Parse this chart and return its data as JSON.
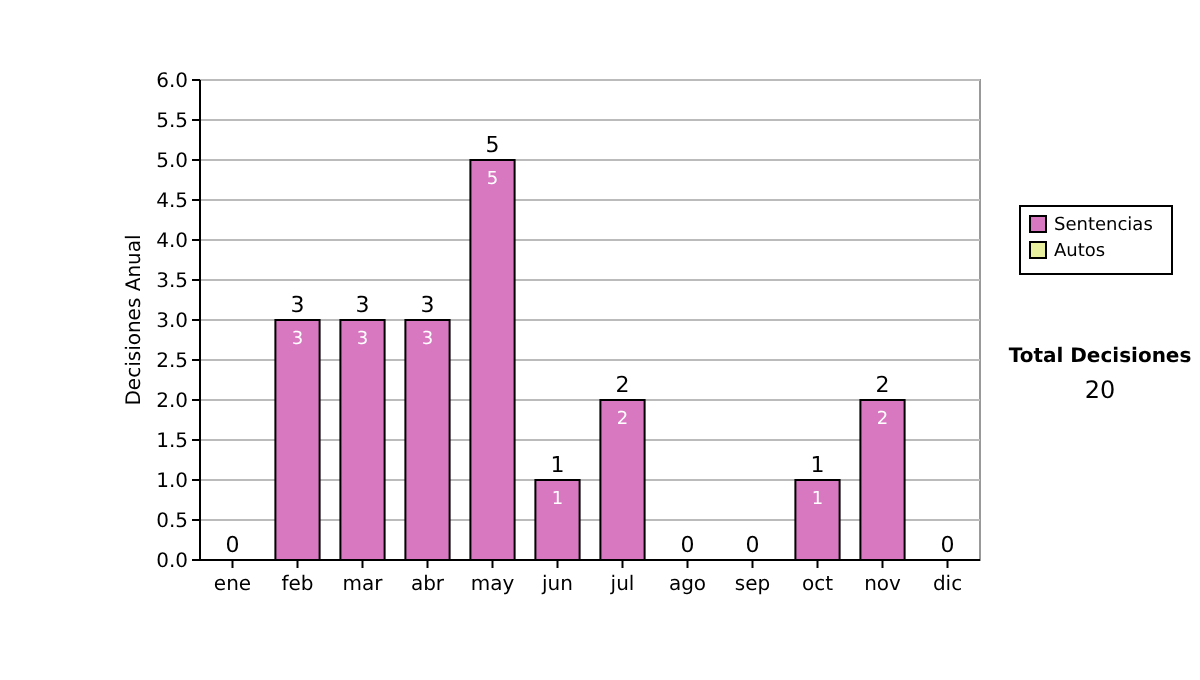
{
  "chart_data": {
    "type": "bar",
    "ylabel": "Decisiones Anual",
    "categories": [
      "ene",
      "feb",
      "mar",
      "abr",
      "may",
      "jun",
      "jul",
      "ago",
      "sep",
      "oct",
      "nov",
      "dic"
    ],
    "stacked": true,
    "series": [
      {
        "name": "Sentencias",
        "color": "#d878c0",
        "values": [
          0,
          3,
          3,
          3,
          5,
          1,
          2,
          0,
          0,
          1,
          2,
          0
        ],
        "value_labels": [
          null,
          "3",
          "3",
          "3",
          "5",
          "1",
          "2",
          null,
          null,
          "1",
          "2",
          null
        ]
      },
      {
        "name": "Autos",
        "color": "#e8f0a0",
        "values": [
          0,
          0,
          0,
          0,
          0,
          0,
          0,
          0,
          0,
          0,
          0,
          0
        ]
      }
    ],
    "totals": [
      "0",
      "3",
      "3",
      "3",
      "5",
      "1",
      "2",
      "0",
      "0",
      "1",
      "2",
      "0"
    ],
    "ylim": [
      0,
      6
    ],
    "yticks": [
      {
        "value": 0,
        "label": "0.0"
      },
      {
        "value": 0.5,
        "label": "0.5"
      },
      {
        "value": 1,
        "label": "1.0"
      },
      {
        "value": 1.5,
        "label": "1.5"
      },
      {
        "value": 2,
        "label": "2.0"
      },
      {
        "value": 2.5,
        "label": "2.5"
      },
      {
        "value": 3,
        "label": "3.0"
      },
      {
        "value": 3.5,
        "label": "3.5"
      },
      {
        "value": 4,
        "label": "4.0"
      },
      {
        "value": 4.5,
        "label": "4.5"
      },
      {
        "value": 5,
        "label": "5.0"
      },
      {
        "value": 5.5,
        "label": "5.5"
      },
      {
        "value": 6,
        "label": "6.0"
      }
    ],
    "grid": "y",
    "legend": "right",
    "annotations": [
      "Total Decisiones",
      "20"
    ]
  }
}
